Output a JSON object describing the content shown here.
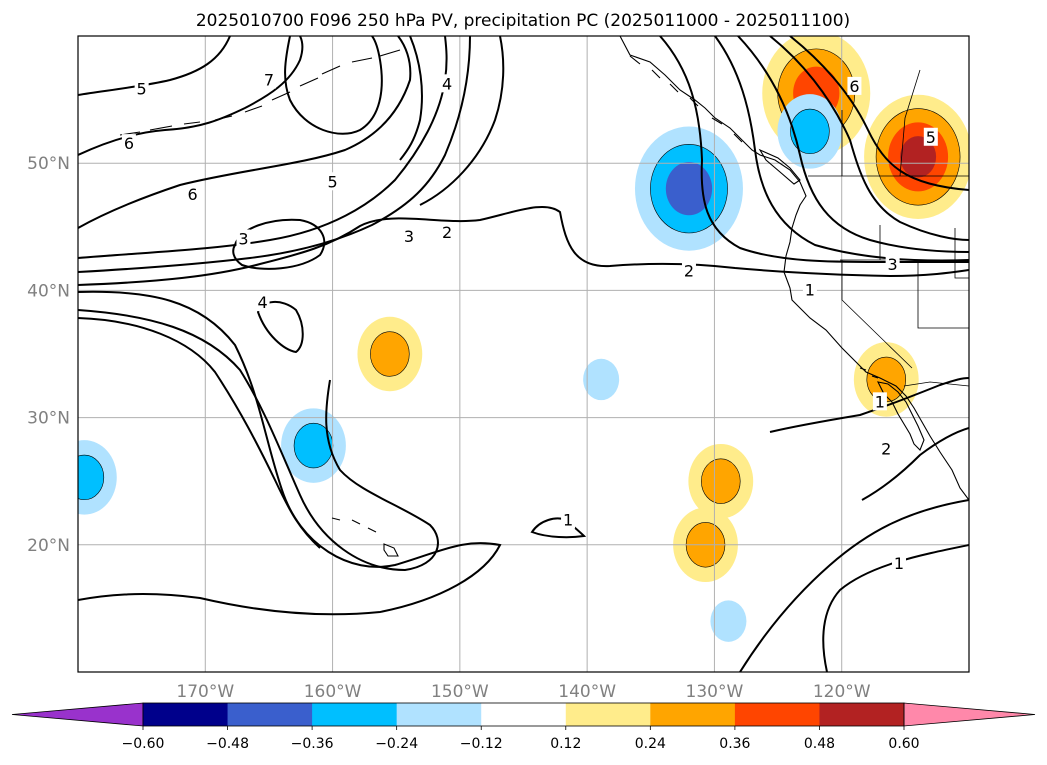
{
  "chart_data": {
    "type": "heatmap",
    "title": "2025010700 F096 250 hPa PV, precipitation PC (2025011000 - 2025011100)",
    "map": {
      "projection": "equirectangular",
      "lon_range": [
        -180,
        -110
      ],
      "lat_range": [
        10,
        60
      ],
      "grid": true,
      "lon_ticks": [
        -170,
        -160,
        -150,
        -140,
        -130,
        -120
      ],
      "lon_tick_labels": [
        "170°W",
        "160°W",
        "150°W",
        "140°W",
        "130°W",
        "120°W"
      ],
      "lat_ticks": [
        20,
        30,
        40,
        50
      ],
      "lat_tick_labels": [
        "20°N",
        "30°N",
        "40°N",
        "50°N"
      ]
    },
    "colorbar": {
      "orientation": "horizontal",
      "placement": "bottom",
      "extend": "both",
      "levels": [
        -0.6,
        -0.48,
        -0.36,
        -0.24,
        -0.12,
        0.12,
        0.24,
        0.36,
        0.48,
        0.6
      ],
      "tick_labels": [
        "−0.60",
        "−0.48",
        "−0.36",
        "−0.24",
        "−0.12",
        "0.12",
        "0.24",
        "0.36",
        "0.48",
        "0.60"
      ],
      "colors": [
        "#9932cc",
        "#00008b",
        "#3a5fcd",
        "#00bfff",
        "#b0e2ff",
        "#ffffff",
        "#ffec8b",
        "#ffa500",
        "#ff4500",
        "#b22222",
        "#ff88aa"
      ]
    },
    "pv_contour_labels": [
      {
        "text": "5",
        "lon": -175,
        "lat": 55.8
      },
      {
        "text": "6",
        "lon": -176,
        "lat": 51.5
      },
      {
        "text": "6",
        "lon": -171,
        "lat": 47.5
      },
      {
        "text": "5",
        "lon": -160,
        "lat": 48.5
      },
      {
        "text": "7",
        "lon": -165,
        "lat": 56.5
      },
      {
        "text": "4",
        "lon": -151,
        "lat": 56.2
      },
      {
        "text": "3",
        "lon": -167,
        "lat": 44.0
      },
      {
        "text": "4",
        "lon": -165.5,
        "lat": 39.0
      },
      {
        "text": "3",
        "lon": -154,
        "lat": 44.2
      },
      {
        "text": "2",
        "lon": -151,
        "lat": 44.5
      },
      {
        "text": "2",
        "lon": -132,
        "lat": 41.5
      },
      {
        "text": "1",
        "lon": -122.5,
        "lat": 40.0
      },
      {
        "text": "3",
        "lon": -116,
        "lat": 42.0
      },
      {
        "text": "5",
        "lon": -113,
        "lat": 52.0
      },
      {
        "text": "6",
        "lon": -119,
        "lat": 56.0
      },
      {
        "text": "1",
        "lon": -141.5,
        "lat": 21.9
      },
      {
        "text": "1",
        "lon": -117,
        "lat": 31.2
      },
      {
        "text": "2",
        "lon": -116.5,
        "lat": 27.5
      },
      {
        "text": "1",
        "lon": -115.5,
        "lat": 18.5
      }
    ],
    "precip_pc_regions": [
      {
        "lon": -122,
        "lat": 55.5,
        "value": 0.42
      },
      {
        "lon": -114,
        "lat": 50.5,
        "value": 0.5
      },
      {
        "lon": -132,
        "lat": 48.0,
        "value": -0.44
      },
      {
        "lon": -122.5,
        "lat": 52.5,
        "value": -0.3
      },
      {
        "lon": -116.5,
        "lat": 33.0,
        "value": 0.3
      },
      {
        "lon": -155.5,
        "lat": 35.0,
        "value": 0.3
      },
      {
        "lon": -161.5,
        "lat": 27.8,
        "value": -0.32
      },
      {
        "lon": -129.5,
        "lat": 25.0,
        "value": 0.3
      },
      {
        "lon": -179.5,
        "lat": 25.3,
        "value": -0.28
      },
      {
        "lon": -138.9,
        "lat": 33.0,
        "value": -0.14
      },
      {
        "lon": -130.7,
        "lat": 20.0,
        "value": 0.26
      },
      {
        "lon": -128.9,
        "lat": 14.0,
        "value": -0.18
      }
    ]
  }
}
